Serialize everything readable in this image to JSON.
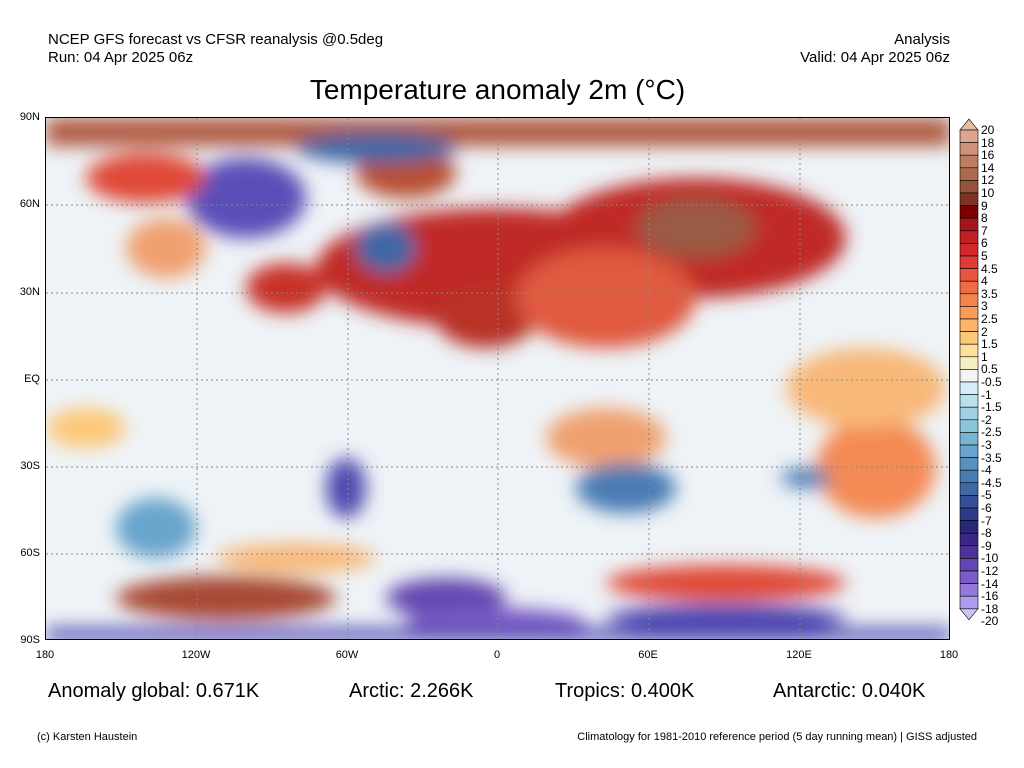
{
  "header": {
    "line1": "NCEP GFS forecast vs CFSR reanalysis @0.5deg",
    "line2": "Run: 04 Apr 2025 06z",
    "right1": "Analysis",
    "right2": "Valid: 04 Apr 2025 06z"
  },
  "title": "Temperature anomaly 2m (°C)",
  "map": {
    "lat_labels": [
      "90N",
      "60N",
      "30N",
      "EQ",
      "30S",
      "60S",
      "90S"
    ],
    "lon_labels": [
      "180",
      "120W",
      "60W",
      "0",
      "60E",
      "120E",
      "180"
    ]
  },
  "colorbar": {
    "labels": [
      "20",
      "18",
      "16",
      "14",
      "12",
      "10",
      "9",
      "8",
      "7",
      "6",
      "5",
      "4.5",
      "4",
      "3.5",
      "3",
      "2.5",
      "2",
      "1.5",
      "1",
      "0.5",
      "-0.5",
      "-1",
      "-1.5",
      "-2",
      "-2.5",
      "-3",
      "-3.5",
      "-4",
      "-4.5",
      "-5",
      "-6",
      "-7",
      "-8",
      "-9",
      "-10",
      "-12",
      "-14",
      "-16",
      "-18",
      "-20"
    ],
    "colors": [
      "#e8bca6",
      "#dca68c",
      "#cf9278",
      "#bf7c62",
      "#ad6a4e",
      "#97543c",
      "#7d3224",
      "#7c0000",
      "#a8141c",
      "#be2026",
      "#d22a2a",
      "#e03a34",
      "#e8543e",
      "#f06c48",
      "#f4844e",
      "#f89c58",
      "#fbb468",
      "#fcc878",
      "#fde09c",
      "#f7efc4",
      "#f4f4f4",
      "#d6eef8",
      "#b8e0ee",
      "#a0d0e4",
      "#8cc4dc",
      "#78b4d4",
      "#68a4cc",
      "#5890c0",
      "#4a7cb4",
      "#3e68a6",
      "#344f98",
      "#2c3a88",
      "#2a2678",
      "#3c2488",
      "#4e329c",
      "#6446b0",
      "#7c5cc8",
      "#9478dc",
      "#b09cec",
      "#ccc4f8"
    ]
  },
  "stats": {
    "global": "Anomaly global: 0.671K",
    "arctic": "Arctic: 2.266K",
    "tropics": "Tropics: 0.400K",
    "antarctic": "Antarctic: 0.040K"
  },
  "footer": {
    "left": "(c) Karsten Haustein",
    "right": "Climatology for 1981-2010 reference period (5 day running mean) | GISS adjusted"
  }
}
